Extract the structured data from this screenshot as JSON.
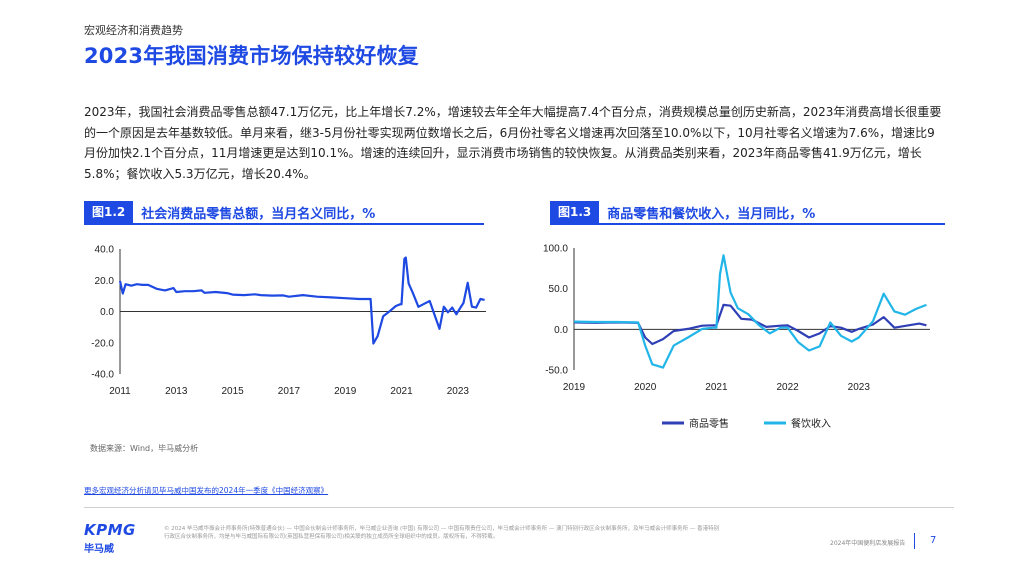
{
  "header": {
    "section": "宏观经济和消费趋势",
    "title": "2023年我国消费市场保持较好恢复"
  },
  "body": {
    "paragraph": "2023年，我国社会消费品零售总额47.1万亿元，比上年增长7.2%，增速较去年全年大幅提高7.4个百分点，消费规模总量创历史新高，2023年消费高增长很重要的一个原因是去年基数较低。单月来看，继3-5月份社零实现两位数增长之后，6月份社零名义增速再次回落至10.0%以下，10月社零名义增速为7.6%，增速比9月份加快2.1个百分点，11月增速更是达到10.1%。增速的连续回升，显示消费市场销售的较快恢复。从消费品类别来看，2023年商品零售41.9万亿元，增长5.8%；餐饮收入5.3万亿元，增长20.4%。"
  },
  "figure1": {
    "label": "图1.2",
    "title": "社会消费品零售总额，当月名义同比，%"
  },
  "figure2": {
    "label": "图1.3",
    "title": "商品零售和餐饮收入，当月同比，%"
  },
  "chart_data": [
    {
      "type": "line",
      "title": "社会消费品零售总额，当月名义同比，%",
      "x_ticks": [
        "2011",
        "2013",
        "2015",
        "2017",
        "2019",
        "2021",
        "2023"
      ],
      "y_ticks": [
        "40.0",
        "20.0",
        "0.0",
        "-20.0",
        "-40.0"
      ],
      "ylim": [
        -40,
        40
      ],
      "xlim": [
        2011.0,
        2024.0
      ],
      "grid": false,
      "series": [
        {
          "color": "#1e49e2",
          "x": [
            2011.0,
            2011.1,
            2011.2,
            2011.4,
            2011.6,
            2011.8,
            2012.0,
            2012.3,
            2012.6,
            2012.9,
            2013.0,
            2013.3,
            2013.6,
            2013.9,
            2014.0,
            2014.4,
            2014.8,
            2015.0,
            2015.4,
            2015.8,
            2016.0,
            2016.4,
            2016.8,
            2017.0,
            2017.5,
            2018.0,
            2018.5,
            2019.0,
            2019.5,
            2019.9,
            2020.0,
            2020.15,
            2020.35,
            2020.6,
            2020.8,
            2020.95,
            2021.0,
            2021.1,
            2021.15,
            2021.25,
            2021.4,
            2021.6,
            2021.8,
            2022.0,
            2022.2,
            2022.35,
            2022.5,
            2022.65,
            2022.8,
            2022.95,
            2023.0,
            2023.2,
            2023.35,
            2023.5,
            2023.65,
            2023.8,
            2023.95
          ],
          "y": [
            19.5,
            11.5,
            17.5,
            16.5,
            17.5,
            17.0,
            17.0,
            14.5,
            13.5,
            15.0,
            12.5,
            13.0,
            13.0,
            13.5,
            12.0,
            12.5,
            11.8,
            10.8,
            10.5,
            11.0,
            10.5,
            10.2,
            10.3,
            9.5,
            10.5,
            9.5,
            9.0,
            8.5,
            8.0,
            8.0,
            -20.5,
            -15.8,
            -3.0,
            0.5,
            3.5,
            4.6,
            4.6,
            33.8,
            34.5,
            18.0,
            12.0,
            3.0,
            4.9,
            6.7,
            -3.5,
            -11.1,
            3.1,
            -0.5,
            2.5,
            -1.8,
            -0.2,
            5.5,
            18.4,
            3.1,
            2.5,
            8.0,
            7.4
          ]
        }
      ]
    },
    {
      "type": "line",
      "title": "商品零售和餐饮收入，当月同比，%",
      "x_ticks": [
        "2019",
        "2020",
        "2021",
        "2022",
        "2023"
      ],
      "y_ticks": [
        "100.0",
        "50.0",
        "0.0",
        "-50.0"
      ],
      "ylim": [
        -50,
        100
      ],
      "xlim": [
        2019.0,
        2024.0
      ],
      "grid": false,
      "series": [
        {
          "name": "商品零售",
          "color": "#2f3fb5",
          "x": [
            2019.0,
            2019.3,
            2019.6,
            2019.9,
            2020.0,
            2020.1,
            2020.25,
            2020.4,
            2020.6,
            2020.8,
            2020.95,
            2021.0,
            2021.1,
            2021.2,
            2021.35,
            2021.5,
            2021.7,
            2021.9,
            2022.0,
            2022.15,
            2022.3,
            2022.45,
            2022.6,
            2022.75,
            2022.9,
            2023.0,
            2023.2,
            2023.35,
            2023.5,
            2023.7,
            2023.85,
            2023.95
          ],
          "y": [
            8.5,
            8.0,
            8.5,
            8.0,
            -10.0,
            -18.0,
            -12.0,
            -2.0,
            0.5,
            4.5,
            5.0,
            5.0,
            30.0,
            29.0,
            13.0,
            12.0,
            3.0,
            4.5,
            5.0,
            -2.0,
            -10.0,
            -5.0,
            4.0,
            2.0,
            -3.0,
            0.5,
            6.0,
            15.0,
            2.0,
            5.0,
            7.0,
            5.0
          ]
        },
        {
          "name": "餐饮收入",
          "color": "#22b5e8",
          "x": [
            2019.0,
            2019.3,
            2019.6,
            2019.9,
            2020.0,
            2020.1,
            2020.25,
            2020.4,
            2020.6,
            2020.8,
            2020.95,
            2021.0,
            2021.05,
            2021.1,
            2021.2,
            2021.3,
            2021.45,
            2021.6,
            2021.75,
            2021.9,
            2022.0,
            2022.15,
            2022.3,
            2022.45,
            2022.6,
            2022.75,
            2022.9,
            2023.0,
            2023.2,
            2023.35,
            2023.5,
            2023.65,
            2023.8,
            2023.95
          ],
          "y": [
            9.5,
            9.0,
            9.0,
            8.5,
            -20.0,
            -43.0,
            -47.0,
            -20.0,
            -10.0,
            0.5,
            2.0,
            2.0,
            68.0,
            91.0,
            45.0,
            26.0,
            18.5,
            5.0,
            -5.0,
            2.0,
            2.0,
            -16.0,
            -26.0,
            -21.0,
            8.4,
            -8.0,
            -15.0,
            -10.0,
            10.0,
            43.8,
            22.0,
            18.0,
            25.0,
            30.0
          ]
        }
      ],
      "legend": {
        "position": "bottom",
        "items": [
          "商品零售",
          "餐饮收入"
        ]
      }
    }
  ],
  "source_note": "数据来源：Wind，毕马威分析",
  "more_link": "更多宏观经济分析请见毕马威中国发布的2024年一季度《中国经济观察》",
  "footer": {
    "logo_text": "KPMG",
    "logo_cn": "毕马威",
    "legal": "© 2024 毕马威华振会计师事务所(特殊普通合伙) — 中国合伙制会计师事务所，毕马威企业咨询 (中国) 有限公司 — 中国有限责任公司，毕马威会计师事务所 — 澳门特别行政区合伙制事务所，及毕马威会计师事务所 — 香港特别行政区合伙制事务所，均是与毕马威国际有限公司(英国私营担保有限公司)相关联的独立成员所全球组织中的成员。版权所有，不得转载。",
    "report_name": "2024年中国便利店发展报告",
    "page_number": "7"
  }
}
